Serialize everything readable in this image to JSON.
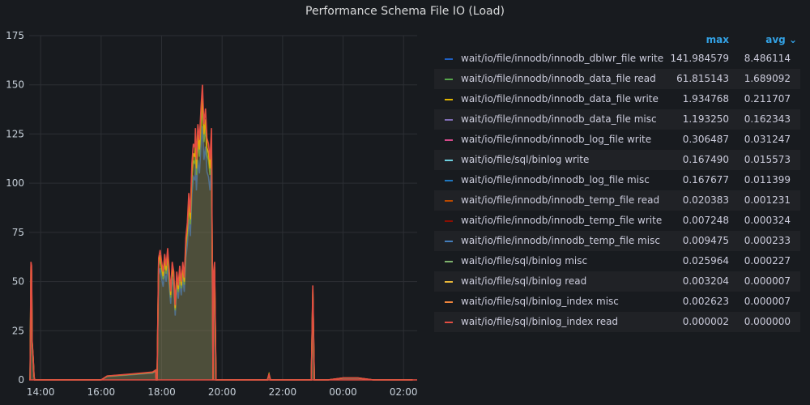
{
  "title": "Performance Schema File IO (Load)",
  "legend_headers": {
    "max": "max",
    "avg": "avg ⌄"
  },
  "chart_data": {
    "type": "area",
    "title": "Performance Schema File IO (Load)",
    "x_ticks": [
      "14:00",
      "16:00",
      "18:00",
      "20:00",
      "22:00",
      "00:00",
      "02:00"
    ],
    "y_ticks": [
      "0",
      "25",
      "50",
      "75",
      "100",
      "125",
      "150",
      "175"
    ],
    "ylim": [
      0,
      175
    ],
    "grid": true,
    "legend_placement": "right",
    "series": [
      {
        "name": "wait/io/file/innodb/innodb_dblwr_file write",
        "color": "#1f60c4",
        "max": "141.984579",
        "avg": "8.486114"
      },
      {
        "name": "wait/io/file/innodb/innodb_data_file read",
        "color": "#56a64b",
        "max": "61.815143",
        "avg": "1.689092"
      },
      {
        "name": "wait/io/file/innodb/innodb_data_file write",
        "color": "#e0b400",
        "max": "1.934768",
        "avg": "0.211707"
      },
      {
        "name": "wait/io/file/innodb/innodb_data_file misc",
        "color": "#806eb7",
        "max": "1.193250",
        "avg": "0.162343"
      },
      {
        "name": "wait/io/file/innodb/innodb_log_file write",
        "color": "#d44a8b",
        "max": "0.306487",
        "avg": "0.031247"
      },
      {
        "name": "wait/io/file/sql/binlog write",
        "color": "#6ed0e0",
        "max": "0.167490",
        "avg": "0.015573"
      },
      {
        "name": "wait/io/file/innodb/innodb_log_file misc",
        "color": "#1f78c1",
        "max": "0.167677",
        "avg": "0.011399"
      },
      {
        "name": "wait/io/file/innodb/innodb_temp_file read",
        "color": "#ba4a00",
        "max": "0.020383",
        "avg": "0.001231"
      },
      {
        "name": "wait/io/file/innodb/innodb_temp_file write",
        "color": "#890f02",
        "max": "0.007248",
        "avg": "0.000324"
      },
      {
        "name": "wait/io/file/innodb/innodb_temp_file misc",
        "color": "#447ebc",
        "max": "0.009475",
        "avg": "0.000233"
      },
      {
        "name": "wait/io/file/sql/binlog misc",
        "color": "#7eb26d",
        "max": "0.025964",
        "avg": "0.000227"
      },
      {
        "name": "wait/io/file/sql/binlog read",
        "color": "#eab839",
        "max": "0.003204",
        "avg": "0.000007"
      },
      {
        "name": "wait/io/file/sql/binlog_index misc",
        "color": "#ef843c",
        "max": "0.002623",
        "avg": "0.000007"
      },
      {
        "name": "wait/io/file/sql/binlog_index read",
        "color": "#e24d42",
        "max": "0.000002",
        "avg": "0.000000"
      }
    ],
    "total_curve": {
      "x_hours": [
        13.65,
        13.68,
        13.7,
        13.72,
        13.75,
        13.78,
        13.8,
        13.82,
        13.85,
        13.9,
        14,
        15,
        16,
        16.2,
        17,
        17.7,
        17.8,
        17.82,
        17.85,
        17.9,
        17.95,
        18,
        18.05,
        18.1,
        18.15,
        18.2,
        18.25,
        18.3,
        18.35,
        18.4,
        18.45,
        18.5,
        18.55,
        18.6,
        18.65,
        18.7,
        18.75,
        18.8,
        18.85,
        18.9,
        18.95,
        19,
        19.05,
        19.1,
        19.12,
        19.15,
        19.2,
        19.25,
        19.3,
        19.35,
        19.4,
        19.45,
        19.5,
        19.55,
        19.6,
        19.65,
        19.7,
        19.72,
        19.75,
        19.8,
        19.85,
        19.9,
        20,
        20.5,
        21,
        21.5,
        21.55,
        21.6,
        22,
        22.5,
        22.95,
        23.0,
        23.05,
        23.1,
        23.5,
        24,
        24.5,
        25,
        25.5,
        26,
        26.3
      ],
      "values": [
        0,
        60,
        58,
        20,
        12,
        2,
        0,
        0,
        0,
        0,
        0,
        0,
        0,
        2,
        3,
        4,
        5,
        0,
        0,
        62,
        66,
        60,
        55,
        64,
        58,
        67,
        56,
        45,
        60,
        55,
        38,
        55,
        48,
        58,
        50,
        60,
        52,
        72,
        80,
        95,
        85,
        110,
        120,
        118,
        128,
        112,
        130,
        122,
        138,
        150,
        130,
        138,
        123,
        120,
        112,
        128,
        0,
        55,
        60,
        0,
        0,
        0,
        0,
        0,
        0,
        0,
        3,
        0,
        0,
        0,
        0,
        48,
        0,
        0,
        0,
        1,
        1,
        0,
        0,
        0,
        0
      ]
    }
  }
}
